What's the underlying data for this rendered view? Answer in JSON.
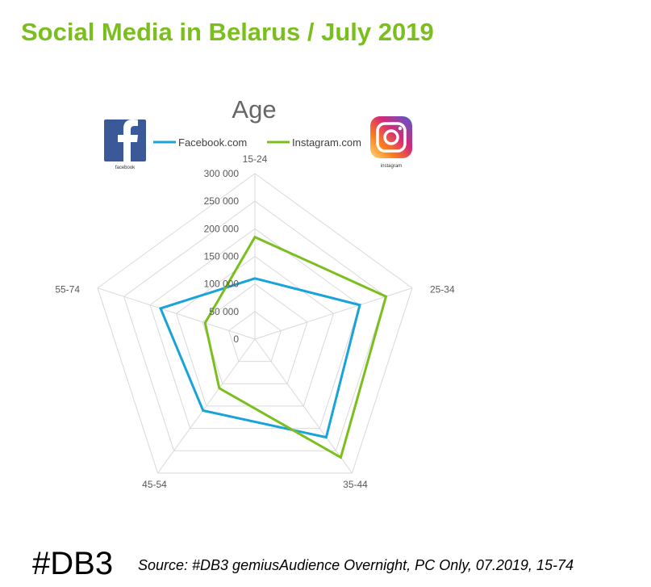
{
  "header": {
    "title": "Social Media in Belarus / July 2019"
  },
  "footer": {
    "tag": "#DB3",
    "source": "Source: #DB3 gemiusAudience Overnight, PC Only,  07.2019,  15-74"
  },
  "logos": {
    "facebook": {
      "caption": "facebook",
      "color": "#3b5998",
      "icon": "facebook-logo-icon"
    },
    "instagram": {
      "caption": "instagram",
      "icon": "instagram-logo-icon"
    }
  },
  "chart_data": {
    "type": "radar",
    "title": "Age",
    "categories": [
      "15-24",
      "25-34",
      "35-44",
      "45-54",
      "55-74"
    ],
    "radial_ticks": [
      "0",
      "50 000",
      "100 000",
      "150 000",
      "200 000",
      "250 000",
      "300 000"
    ],
    "rlim": [
      0,
      300000
    ],
    "legend_position": "top",
    "grid": true,
    "series": [
      {
        "name": "Facebook.com",
        "color": "#1aa3d9",
        "values": [
          110000,
          200000,
          220000,
          160000,
          180000
        ]
      },
      {
        "name": "Instagram.com",
        "color": "#7bbf1e",
        "values": [
          185000,
          250000,
          265000,
          110000,
          95000
        ]
      }
    ]
  }
}
